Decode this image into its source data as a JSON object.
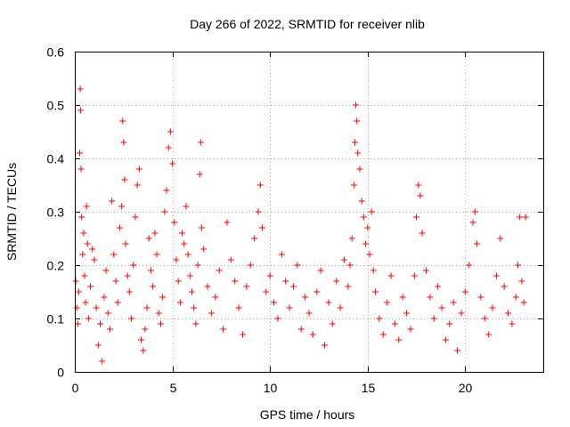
{
  "chart_data": {
    "type": "scatter",
    "title": "Day 266 of 2022, SRMTID for receiver nlib",
    "xlabel": "GPS time / hours",
    "ylabel": "SRMTID / TECUs",
    "xlim": [
      0,
      24
    ],
    "ylim": [
      0,
      0.6
    ],
    "xticks": [
      0,
      5,
      10,
      15,
      20
    ],
    "yticks": [
      0,
      0.1,
      0.2,
      0.3,
      0.4,
      0.5,
      0.6
    ],
    "xtick_labels": [
      "0",
      "5",
      "10",
      "15",
      "20"
    ],
    "ytick_labels": [
      "0",
      "0.1",
      "0.2",
      "0.3",
      "0.4",
      "0.5",
      "0.6"
    ],
    "grid": true,
    "marker": "+",
    "color": "#ff0000",
    "series": [
      {
        "name": "SRMTID",
        "points": [
          [
            0.05,
            0.17
          ],
          [
            0.1,
            0.12
          ],
          [
            0.15,
            0.09
          ],
          [
            0.2,
            0.15
          ],
          [
            0.25,
            0.41
          ],
          [
            0.28,
            0.53
          ],
          [
            0.3,
            0.49
          ],
          [
            0.32,
            0.38
          ],
          [
            0.35,
            0.29
          ],
          [
            0.4,
            0.22
          ],
          [
            0.45,
            0.26
          ],
          [
            0.5,
            0.18
          ],
          [
            0.55,
            0.13
          ],
          [
            0.6,
            0.31
          ],
          [
            0.65,
            0.24
          ],
          [
            0.7,
            0.1
          ],
          [
            0.8,
            0.16
          ],
          [
            0.9,
            0.23
          ],
          [
            1.0,
            0.21
          ],
          [
            1.1,
            0.12
          ],
          [
            1.2,
            0.05
          ],
          [
            1.3,
            0.09
          ],
          [
            1.4,
            0.02
          ],
          [
            1.5,
            0.14
          ],
          [
            1.6,
            0.19
          ],
          [
            1.7,
            0.11
          ],
          [
            1.8,
            0.08
          ],
          [
            1.9,
            0.32
          ],
          [
            2.0,
            0.22
          ],
          [
            2.1,
            0.17
          ],
          [
            2.2,
            0.13
          ],
          [
            2.3,
            0.27
          ],
          [
            2.4,
            0.31
          ],
          [
            2.45,
            0.47
          ],
          [
            2.5,
            0.43
          ],
          [
            2.55,
            0.36
          ],
          [
            2.6,
            0.24
          ],
          [
            2.7,
            0.18
          ],
          [
            2.8,
            0.15
          ],
          [
            2.9,
            0.1
          ],
          [
            3.0,
            0.2
          ],
          [
            3.1,
            0.29
          ],
          [
            3.2,
            0.35
          ],
          [
            3.3,
            0.38
          ],
          [
            3.4,
            0.06
          ],
          [
            3.5,
            0.04
          ],
          [
            3.6,
            0.08
          ],
          [
            3.7,
            0.12
          ],
          [
            3.8,
            0.25
          ],
          [
            3.9,
            0.19
          ],
          [
            4.0,
            0.16
          ],
          [
            4.1,
            0.26
          ],
          [
            4.2,
            0.22
          ],
          [
            4.3,
            0.11
          ],
          [
            4.4,
            0.09
          ],
          [
            4.5,
            0.14
          ],
          [
            4.6,
            0.3
          ],
          [
            4.7,
            0.34
          ],
          [
            4.8,
            0.42
          ],
          [
            4.9,
            0.45
          ],
          [
            5.0,
            0.39
          ],
          [
            5.1,
            0.28
          ],
          [
            5.2,
            0.21
          ],
          [
            5.3,
            0.17
          ],
          [
            5.4,
            0.13
          ],
          [
            5.5,
            0.26
          ],
          [
            5.6,
            0.24
          ],
          [
            5.7,
            0.31
          ],
          [
            5.8,
            0.22
          ],
          [
            5.9,
            0.18
          ],
          [
            6.0,
            0.15
          ],
          [
            6.1,
            0.12
          ],
          [
            6.2,
            0.09
          ],
          [
            6.3,
            0.2
          ],
          [
            6.4,
            0.37
          ],
          [
            6.45,
            0.43
          ],
          [
            6.5,
            0.27
          ],
          [
            6.6,
            0.23
          ],
          [
            6.8,
            0.16
          ],
          [
            7.0,
            0.11
          ],
          [
            7.2,
            0.14
          ],
          [
            7.4,
            0.19
          ],
          [
            7.6,
            0.08
          ],
          [
            7.8,
            0.28
          ],
          [
            8.0,
            0.21
          ],
          [
            8.2,
            0.17
          ],
          [
            8.4,
            0.12
          ],
          [
            8.6,
            0.07
          ],
          [
            8.8,
            0.16
          ],
          [
            9.0,
            0.2
          ],
          [
            9.2,
            0.25
          ],
          [
            9.4,
            0.3
          ],
          [
            9.5,
            0.35
          ],
          [
            9.6,
            0.27
          ],
          [
            9.8,
            0.15
          ],
          [
            10.0,
            0.18
          ],
          [
            10.2,
            0.13
          ],
          [
            10.4,
            0.1
          ],
          [
            10.6,
            0.22
          ],
          [
            10.8,
            0.17
          ],
          [
            11.0,
            0.12
          ],
          [
            11.2,
            0.16
          ],
          [
            11.4,
            0.2
          ],
          [
            11.6,
            0.08
          ],
          [
            11.8,
            0.14
          ],
          [
            12.0,
            0.11
          ],
          [
            12.2,
            0.07
          ],
          [
            12.4,
            0.15
          ],
          [
            12.6,
            0.19
          ],
          [
            12.8,
            0.05
          ],
          [
            13.0,
            0.13
          ],
          [
            13.2,
            0.09
          ],
          [
            13.4,
            0.17
          ],
          [
            13.6,
            0.12
          ],
          [
            13.8,
            0.21
          ],
          [
            14.0,
            0.16
          ],
          [
            14.1,
            0.2
          ],
          [
            14.2,
            0.25
          ],
          [
            14.3,
            0.35
          ],
          [
            14.35,
            0.43
          ],
          [
            14.4,
            0.5
          ],
          [
            14.45,
            0.47
          ],
          [
            14.5,
            0.41
          ],
          [
            14.6,
            0.38
          ],
          [
            14.7,
            0.32
          ],
          [
            14.8,
            0.29
          ],
          [
            14.9,
            0.24
          ],
          [
            15.0,
            0.27
          ],
          [
            15.1,
            0.22
          ],
          [
            15.2,
            0.3
          ],
          [
            15.3,
            0.19
          ],
          [
            15.4,
            0.15
          ],
          [
            15.6,
            0.1
          ],
          [
            15.8,
            0.07
          ],
          [
            16.0,
            0.13
          ],
          [
            16.2,
            0.18
          ],
          [
            16.4,
            0.09
          ],
          [
            16.6,
            0.06
          ],
          [
            16.8,
            0.14
          ],
          [
            17.0,
            0.11
          ],
          [
            17.2,
            0.08
          ],
          [
            17.4,
            0.18
          ],
          [
            17.5,
            0.29
          ],
          [
            17.6,
            0.35
          ],
          [
            17.7,
            0.33
          ],
          [
            17.8,
            0.26
          ],
          [
            18.0,
            0.19
          ],
          [
            18.2,
            0.14
          ],
          [
            18.4,
            0.1
          ],
          [
            18.6,
            0.16
          ],
          [
            18.8,
            0.12
          ],
          [
            19.0,
            0.06
          ],
          [
            19.2,
            0.09
          ],
          [
            19.4,
            0.13
          ],
          [
            19.6,
            0.04
          ],
          [
            19.8,
            0.11
          ],
          [
            20.0,
            0.15
          ],
          [
            20.2,
            0.2
          ],
          [
            20.4,
            0.28
          ],
          [
            20.5,
            0.3
          ],
          [
            20.6,
            0.24
          ],
          [
            20.8,
            0.14
          ],
          [
            21.0,
            0.1
          ],
          [
            21.2,
            0.07
          ],
          [
            21.4,
            0.12
          ],
          [
            21.6,
            0.18
          ],
          [
            21.8,
            0.25
          ],
          [
            22.0,
            0.16
          ],
          [
            22.2,
            0.11
          ],
          [
            22.4,
            0.09
          ],
          [
            22.6,
            0.14
          ],
          [
            22.7,
            0.2
          ],
          [
            22.8,
            0.29
          ],
          [
            22.9,
            0.17
          ],
          [
            23.0,
            0.13
          ],
          [
            23.1,
            0.29
          ]
        ]
      }
    ]
  }
}
